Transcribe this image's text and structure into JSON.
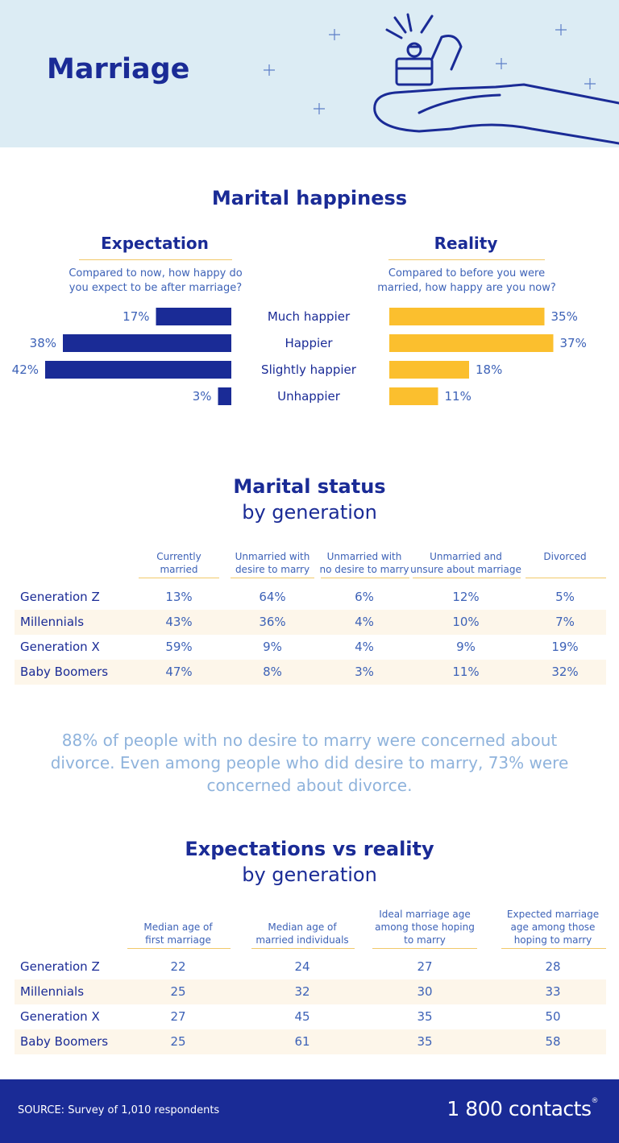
{
  "header": {
    "title": "Marriage"
  },
  "happiness": {
    "title": "Marital happiness",
    "expectation": {
      "title": "Expectation",
      "question_line1": "Compared to now, how happy do",
      "question_line2": "you expect to be after marriage?"
    },
    "reality": {
      "title": "Reality",
      "question_line1": "Compared to before you were",
      "question_line2": "married, how happy are you now?"
    }
  },
  "chart_data": {
    "type": "bar",
    "title": "Marital happiness",
    "categories": [
      "Much happier",
      "Happier",
      "Slightly happier",
      "Unhappier"
    ],
    "series": [
      {
        "name": "Expectation",
        "values": [
          17,
          38,
          42,
          3
        ],
        "labels": [
          "17%",
          "38%",
          "42%",
          "3%"
        ],
        "color": "#1a2b96"
      },
      {
        "name": "Reality",
        "values": [
          35,
          37,
          18,
          11
        ],
        "labels": [
          "35%",
          "37%",
          "18%",
          "11%"
        ],
        "color": "#fbbf2e"
      }
    ],
    "xlabel": "",
    "ylabel": "",
    "xlim": [
      0,
      45
    ]
  },
  "status": {
    "title": "Marital status",
    "subtitle": "by generation",
    "headers": [
      [
        "Currently",
        "married"
      ],
      [
        "Unmarried with",
        "desire to marry"
      ],
      [
        "Unmarried with",
        "no desire to marry"
      ],
      [
        "Unmarried and",
        "unsure about marriage"
      ],
      [
        "",
        "Divorced"
      ]
    ],
    "rows": [
      {
        "label": "Generation Z",
        "values": [
          "13%",
          "64%",
          "6%",
          "12%",
          "5%"
        ]
      },
      {
        "label": "Millennials",
        "values": [
          "43%",
          "36%",
          "4%",
          "10%",
          "7%"
        ]
      },
      {
        "label": "Generation X",
        "values": [
          "59%",
          "9%",
          "4%",
          "9%",
          "19%"
        ]
      },
      {
        "label": "Baby Boomers",
        "values": [
          "47%",
          "8%",
          "3%",
          "11%",
          "32%"
        ]
      }
    ]
  },
  "quote": {
    "line1": "88% of people with no desire to marry were concerned about",
    "line2": "divorce. Even among people who did desire to marry, 73% were",
    "line3": "concerned about divorce."
  },
  "expectations": {
    "title": "Expectations vs reality",
    "subtitle": "by generation",
    "headers": [
      [
        "",
        "Median age of",
        "first marriage"
      ],
      [
        "",
        "Median age of",
        "married individuals"
      ],
      [
        "Ideal marriage age",
        "among those hoping",
        "to marry"
      ],
      [
        "Expected marriage",
        "age among those",
        "hoping to marry"
      ]
    ],
    "rows": [
      {
        "label": "Generation Z",
        "values": [
          "22",
          "24",
          "27",
          "28"
        ]
      },
      {
        "label": "Millennials",
        "values": [
          "25",
          "32",
          "30",
          "33"
        ]
      },
      {
        "label": "Generation X",
        "values": [
          "27",
          "45",
          "35",
          "50"
        ]
      },
      {
        "label": "Baby Boomers",
        "values": [
          "25",
          "61",
          "35",
          "58"
        ]
      }
    ]
  },
  "footer": {
    "source": "SOURCE: Survey of 1,010 respondents",
    "brand": "1 800 contacts",
    "brand_mark": "®"
  },
  "colors": {
    "navy": "#1a2b96",
    "gold": "#fbbf2e",
    "header_bg": "#dcecf4",
    "row_alt": "#fdf6ea",
    "quote": "#8fb3dc"
  }
}
